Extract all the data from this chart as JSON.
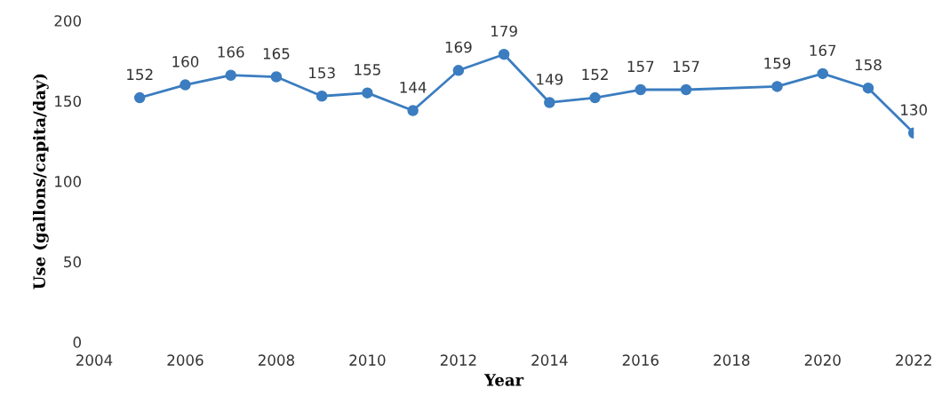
{
  "chart_data": {
    "type": "line",
    "xlabel": "Year",
    "ylabel": "Use (gallons/capita/day)",
    "x": [
      2005,
      2006,
      2007,
      2008,
      2009,
      2010,
      2011,
      2012,
      2013,
      2014,
      2015,
      2016,
      2017,
      2019,
      2020,
      2021,
      2022
    ],
    "series": [
      {
        "color": "#3b7dc0",
        "values": [
          152,
          160,
          166,
          165,
          153,
          155,
          144,
          169,
          179,
          149,
          152,
          157,
          157,
          159,
          167,
          158,
          130
        ]
      }
    ],
    "xlim": [
      2004,
      2022
    ],
    "xticks": [
      2004,
      2006,
      2008,
      2010,
      2012,
      2014,
      2016,
      2018,
      2020,
      2022
    ],
    "ylim": [
      0,
      200
    ],
    "yticks": [
      0,
      50,
      100,
      150,
      200
    ],
    "data_labels": true,
    "marker": "circle",
    "line_style": "solid",
    "grid": false,
    "legend": false
  }
}
